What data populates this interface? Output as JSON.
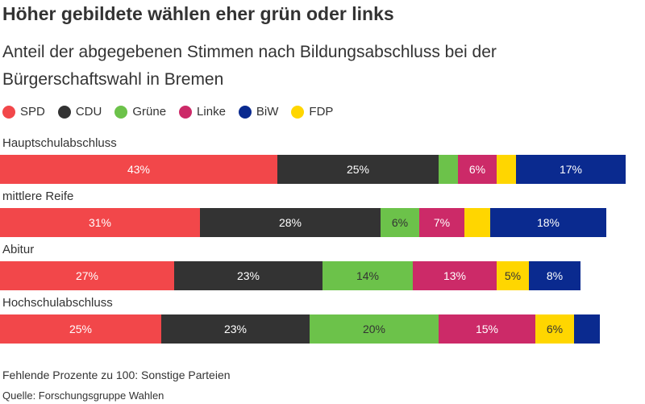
{
  "title": "Höher gebildete wählen eher grün oder links",
  "subtitle": "Anteil der abgegebenen Stimmen nach Bildungsabschluss bei der Bürgerschaftswahl in Bremen",
  "legend": [
    {
      "name": "SPD",
      "color": "#f2474a"
    },
    {
      "name": "CDU",
      "color": "#333333"
    },
    {
      "name": "Grüne",
      "color": "#6cc24a"
    },
    {
      "name": "Linke",
      "color": "#cc2a68"
    },
    {
      "name": "BiW",
      "color": "#0a2a8f"
    },
    {
      "name": "FDP",
      "color": "#ffd600"
    }
  ],
  "footnote": "Fehlende Prozente zu 100: Sonstige Parteien",
  "source": "Quelle: Forschungsgruppe Wahlen",
  "chart_data": {
    "type": "bar",
    "orientation": "horizontal",
    "stacked": true,
    "xlim": [
      0,
      100
    ],
    "categories": [
      "Hauptschulabschluss",
      "mittlere Reife",
      "Abitur",
      "Hochschulabschluss"
    ],
    "series": [
      {
        "name": "SPD",
        "color": "#f2474a",
        "values": [
          43,
          31,
          27,
          25
        ],
        "labels": [
          "43%",
          "31%",
          "27%",
          "25%"
        ]
      },
      {
        "name": "CDU",
        "color": "#333333",
        "values": [
          25,
          28,
          23,
          23
        ],
        "labels": [
          "25%",
          "28%",
          "23%",
          "23%"
        ]
      },
      {
        "name": "Grüne",
        "color": "#6cc24a",
        "values": [
          3,
          6,
          14,
          20
        ],
        "labels": [
          "",
          "6%",
          "14%",
          "20%"
        ]
      },
      {
        "name": "Linke",
        "color": "#cc2a68",
        "values": [
          6,
          7,
          13,
          15
        ],
        "labels": [
          "6%",
          "7%",
          "13%",
          "15%"
        ]
      },
      {
        "name": "FDP",
        "color": "#ffd600",
        "values": [
          3,
          4,
          5,
          6
        ],
        "labels": [
          "",
          "",
          "5%",
          "6%"
        ]
      },
      {
        "name": "BiW",
        "color": "#0a2a8f",
        "values": [
          17,
          18,
          8,
          4
        ],
        "labels": [
          "17%",
          "18%",
          "8%",
          ""
        ]
      }
    ]
  }
}
